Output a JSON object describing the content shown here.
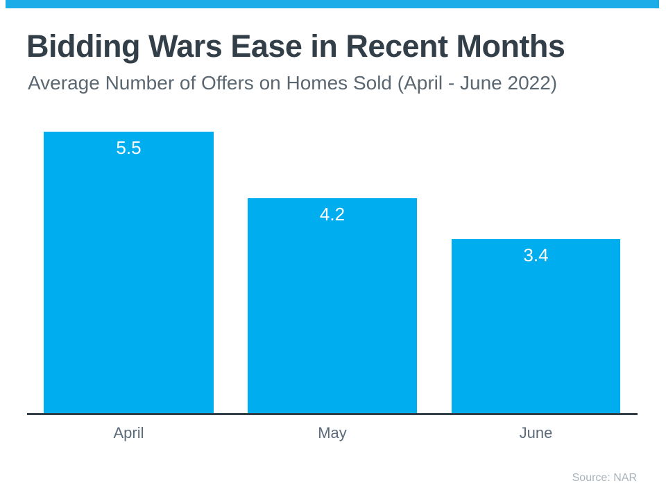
{
  "colors": {
    "accent_bar": "#1CADE9",
    "bar": "#00AEEF",
    "title_text": "#333F48",
    "subtitle_text": "#5B6770",
    "axis_line": "#333F48",
    "tick_label_text": "#5B6B7A",
    "value_label_text": "#FFFFFF",
    "source_text": "#A9B3BB"
  },
  "chart_data": {
    "type": "bar",
    "title": "Bidding Wars Ease in Recent Months",
    "subtitle": "Average Number of Offers on Homes Sold (April - June 2022)",
    "categories": [
      "April",
      "May",
      "June"
    ],
    "values": [
      5.5,
      4.2,
      3.4
    ],
    "xlabel": "",
    "ylabel": "",
    "ylim": [
      0,
      5.5
    ],
    "grid": false,
    "legend": false,
    "value_labels": "inside-top",
    "bar_color": "#00AEEF",
    "source": "Source: NAR"
  }
}
